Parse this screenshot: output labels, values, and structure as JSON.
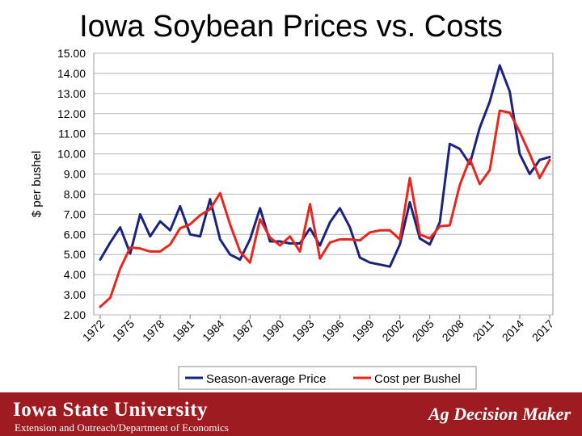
{
  "slide": {
    "title": "Iowa Soybean Prices vs. Costs"
  },
  "footer": {
    "university": "Iowa State University",
    "subtitle": "Extension and Outreach/Department of Economics",
    "brand": "Ag Decision Maker",
    "background": "#9e1b22"
  },
  "chart_data": {
    "type": "line",
    "ylabel": "$ per bushel",
    "ylim": [
      2,
      15
    ],
    "yticks": [
      "2.00",
      "3.00",
      "4.00",
      "5.00",
      "6.00",
      "7.00",
      "8.00",
      "9.00",
      "10.00",
      "11.00",
      "12.00",
      "13.00",
      "14.00",
      "15.00"
    ],
    "xlim": [
      1972,
      2017
    ],
    "xticks": [
      "1972",
      "1975",
      "1978",
      "1981",
      "1984",
      "1987",
      "1990",
      "1993",
      "1996",
      "1999",
      "2002",
      "2005",
      "2008",
      "2011",
      "2014",
      "2017"
    ],
    "grid": true,
    "legend": "bottom",
    "series": [
      {
        "name": "Season-average Price",
        "color": "#1a237e",
        "x": [
          1972,
          1973,
          1974,
          1975,
          1976,
          1977,
          1978,
          1979,
          1980,
          1981,
          1982,
          1983,
          1984,
          1985,
          1986,
          1987,
          1988,
          1989,
          1990,
          1991,
          1992,
          1993,
          1994,
          1995,
          1996,
          1997,
          1998,
          1999,
          2000,
          2001,
          2002,
          2003,
          2004,
          2005,
          2006,
          2007,
          2008,
          2009,
          2010,
          2011,
          2012,
          2013,
          2014,
          2015,
          2016,
          2017
        ],
        "values": [
          4.75,
          5.6,
          6.35,
          5.05,
          7.0,
          5.9,
          6.65,
          6.2,
          7.4,
          6.0,
          5.9,
          7.75,
          5.75,
          5.0,
          4.75,
          5.75,
          7.3,
          5.65,
          5.65,
          5.55,
          5.55,
          6.3,
          5.45,
          6.6,
          7.3,
          6.35,
          4.85,
          4.6,
          4.5,
          4.4,
          5.5,
          7.6,
          5.8,
          5.5,
          6.6,
          10.5,
          10.25,
          9.5,
          11.3,
          12.6,
          14.4,
          13.1,
          10.0,
          9.0,
          9.7,
          9.85
        ]
      },
      {
        "name": "Cost per Bushel",
        "color": "#e8261c",
        "x": [
          1972,
          1973,
          1974,
          1975,
          1976,
          1977,
          1978,
          1979,
          1980,
          1981,
          1982,
          1983,
          1984,
          1985,
          1986,
          1987,
          1988,
          1989,
          1990,
          1991,
          1992,
          1993,
          1994,
          1995,
          1996,
          1997,
          1998,
          1999,
          2000,
          2001,
          2002,
          2003,
          2004,
          2005,
          2006,
          2007,
          2008,
          2009,
          2010,
          2011,
          2012,
          2013,
          2014,
          2015,
          2016,
          2017
        ],
        "values": [
          2.4,
          2.85,
          4.3,
          5.35,
          5.3,
          5.15,
          5.15,
          5.5,
          6.3,
          6.5,
          6.95,
          7.25,
          8.05,
          6.5,
          5.15,
          4.6,
          6.75,
          5.85,
          5.45,
          5.9,
          5.15,
          7.5,
          4.8,
          5.6,
          5.75,
          5.75,
          5.7,
          6.1,
          6.2,
          6.2,
          5.75,
          8.8,
          6.0,
          5.8,
          6.4,
          6.45,
          8.45,
          9.75,
          8.5,
          9.2,
          12.15,
          12.05,
          11.1,
          10.0,
          8.8,
          9.7
        ]
      }
    ]
  }
}
